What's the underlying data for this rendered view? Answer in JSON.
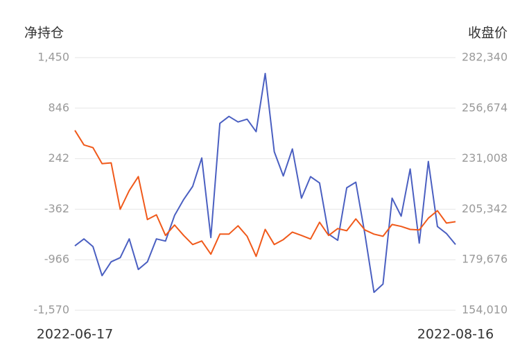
{
  "chart_data": {
    "type": "line",
    "ylabel": "净持仓",
    "y2label": "收盘价",
    "categories": [
      "2022-06-17",
      null,
      null,
      null,
      null,
      null,
      null,
      null,
      null,
      null,
      null,
      null,
      null,
      null,
      null,
      null,
      null,
      null,
      null,
      null,
      null,
      null,
      null,
      null,
      null,
      null,
      null,
      null,
      null,
      null,
      null,
      null,
      null,
      null,
      null,
      null,
      null,
      null,
      null,
      null,
      null,
      null,
      "2022-08-16"
    ],
    "series": [
      {
        "color": "#4a5fc1",
        "axis": "y",
        "values": [
          -800,
          -717,
          -809,
          -1156,
          -991,
          -941,
          -717,
          -1082,
          -991,
          -717,
          -743,
          -436,
          -246,
          -89,
          250,
          -701,
          664,
          747,
          681,
          714,
          565,
          1260,
          325,
          35,
          358,
          -230,
          27,
          -48,
          -660,
          -734,
          -106,
          -39,
          -660,
          -1355,
          -1256,
          -230,
          -445,
          118,
          -767,
          209,
          -569,
          -652,
          -784
        ]
      },
      {
        "color": "#f0591a",
        "axis": "y2",
        "values": [
          245400,
          238000,
          236600,
          228500,
          228900,
          205300,
          214800,
          221900,
          200100,
          202500,
          192000,
          197300,
          192000,
          187400,
          189200,
          182500,
          192700,
          192700,
          196900,
          191600,
          181400,
          195100,
          187400,
          189900,
          193700,
          192000,
          190200,
          198700,
          192000,
          195500,
          194400,
          200400,
          194800,
          192700,
          191600,
          197600,
          196600,
          195100,
          194800,
          200800,
          204600,
          198300,
          199000
        ]
      }
    ],
    "ylim": [
      -1570,
      1450
    ],
    "yticks": [
      {
        "value": -1570,
        "label": "-1,570"
      },
      -966,
      -362,
      242,
      846,
      {
        "value": 1450,
        "label": "1,450"
      }
    ],
    "y2lim": [
      154010,
      282340
    ],
    "y2ticks": [
      {
        "value": 154010,
        "label": "154,010"
      },
      {
        "value": 179676,
        "label": "179,676"
      },
      {
        "value": 205342,
        "label": "205,342"
      },
      {
        "value": 231008,
        "label": "231,008"
      },
      {
        "value": 256674,
        "label": "256,674"
      },
      {
        "value": 282340,
        "label": "282,340"
      }
    ],
    "grid": true
  }
}
